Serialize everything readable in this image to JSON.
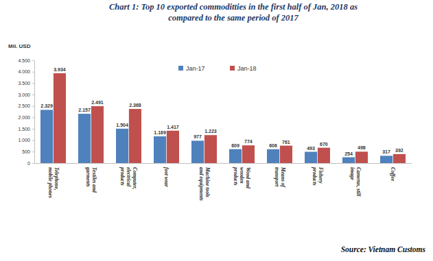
{
  "chart_data": {
    "type": "bar",
    "title": "Chart 1: Top 10 exported commoditties in the first half of Jan, 2018 as compared to the same period of 2017",
    "ylabel": "Mil. USD",
    "source": "Source: Vietnam Customs",
    "categories": [
      "Telephone, mobile phones",
      "Textiles and garments",
      "Computer, electrical products",
      "foot wear",
      "Machine tools and equipments",
      "Wood and wooden products",
      "Means of transport",
      "Fishery products",
      "Cameras, still image",
      "Coffee"
    ],
    "series": [
      {
        "name": "Jan-17",
        "color": "#4f81bd",
        "values": [
          2329,
          2157,
          1504,
          1169,
          977,
          609,
          606,
          493,
          254,
          317
        ],
        "value_labels": [
          "2.329",
          "2.157",
          "1.504",
          "1.169",
          "977",
          "609",
          "606",
          "493",
          "254",
          "317"
        ]
      },
      {
        "name": "Jan-18",
        "color": "#c0504d",
        "values": [
          3934,
          2491,
          2368,
          1417,
          1223,
          774,
          761,
          670,
          498,
          392
        ],
        "value_labels": [
          "3.934",
          "2.491",
          "2.368",
          "1.417",
          "1.223",
          "774",
          "761",
          "670",
          "498",
          "392"
        ]
      }
    ],
    "ylim": [
      0,
      4500
    ],
    "yticks": [
      0,
      500,
      {
        "value": 1000,
        "label": "1.000"
      },
      {
        "value": 1500,
        "label": "1.500"
      },
      {
        "value": 2000,
        "label": "2.000"
      },
      {
        "value": 2500,
        "label": "2.500"
      },
      {
        "value": 3000,
        "label": "3.000"
      },
      {
        "value": 3500,
        "label": "3.500"
      },
      {
        "value": 4000,
        "label": "4.000"
      },
      {
        "value": 4500,
        "label": "4.500"
      }
    ],
    "grid": false,
    "legend": "top",
    "data_labels": true
  }
}
